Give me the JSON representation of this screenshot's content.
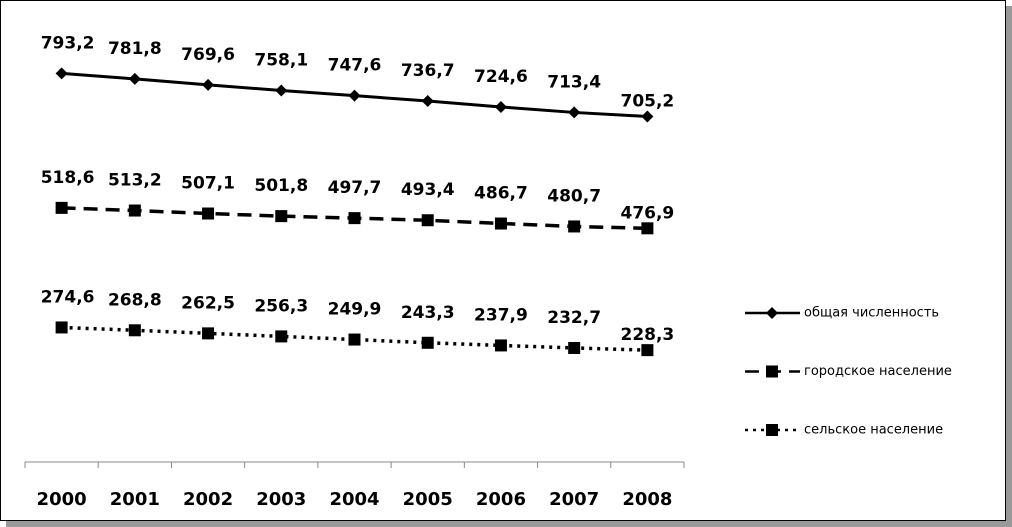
{
  "chart_data": {
    "type": "line",
    "categories": [
      "2000",
      "2001",
      "2002",
      "2003",
      "2004",
      "2005",
      "2006",
      "2007",
      "2008"
    ],
    "ylim": [
      0,
      900
    ],
    "series": [
      {
        "name": "общая численность",
        "color": "#000000",
        "line_style": "solid",
        "marker": "diamond",
        "values": [
          793.2,
          781.8,
          769.6,
          758.1,
          747.6,
          736.7,
          724.6,
          713.4,
          705.2
        ],
        "value_labels": [
          "793,2",
          "781,8",
          "769,6",
          "758,1",
          "747,6",
          "736,7",
          "724,6",
          "713,4",
          "705,2"
        ]
      },
      {
        "name": "городское население",
        "color": "#000000",
        "line_style": "dashed",
        "marker": "square",
        "values": [
          518.6,
          513.2,
          507.1,
          501.8,
          497.7,
          493.4,
          486.7,
          480.7,
          476.9
        ],
        "value_labels": [
          "518,6",
          "513,2",
          "507,1",
          "501,8",
          "497,7",
          "493,4",
          "486,7",
          "480,7",
          "476,9"
        ]
      },
      {
        "name": "сельское население",
        "color": "#000000",
        "line_style": "dotted",
        "marker": "square",
        "values": [
          274.6,
          268.8,
          262.5,
          256.3,
          249.9,
          243.3,
          237.9,
          232.7,
          228.3
        ],
        "value_labels": [
          "274,6",
          "268,8",
          "262,5",
          "256,3",
          "249,9",
          "243,3",
          "237,9",
          "232,7",
          "228,3"
        ]
      }
    ]
  }
}
